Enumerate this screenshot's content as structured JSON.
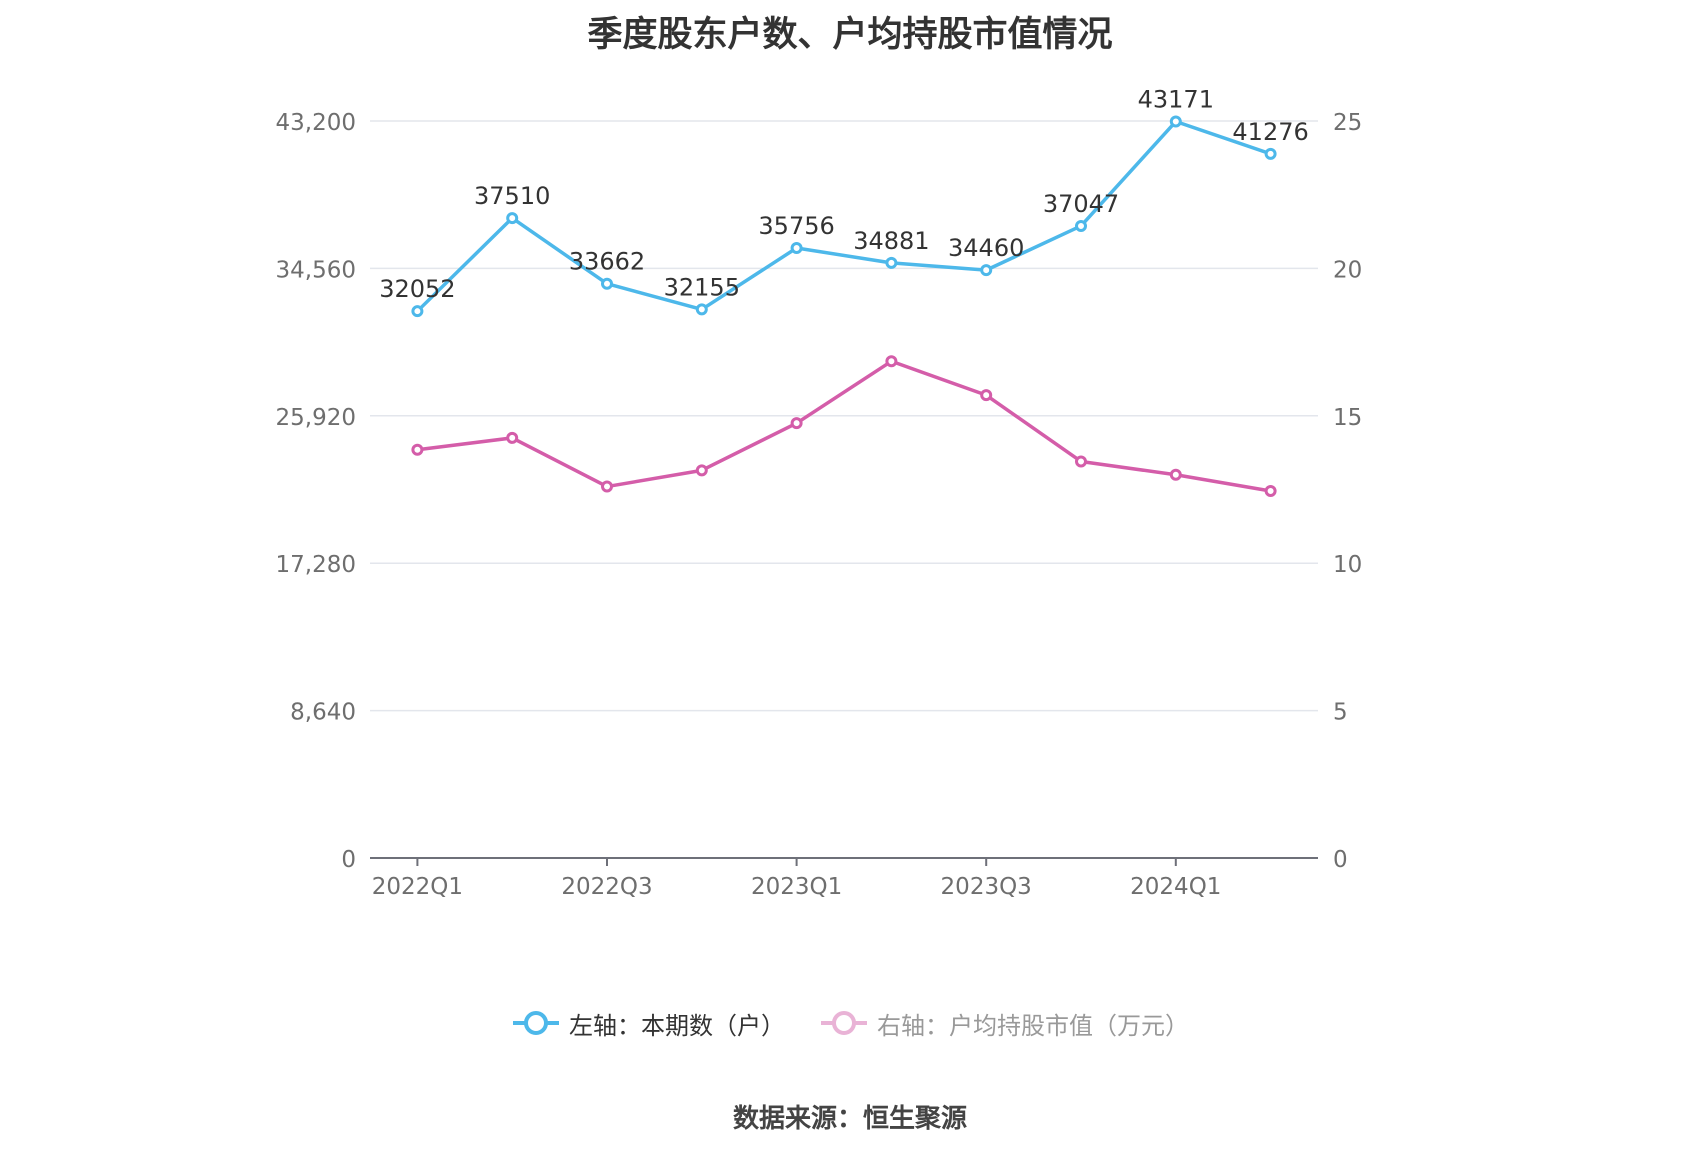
{
  "chart_data": {
    "type": "line",
    "title": "季度股东户数、户均持股市值情况",
    "categories": [
      "2022Q1",
      "2022Q2",
      "2022Q3",
      "2022Q4",
      "2023Q1",
      "2023Q2",
      "2023Q3",
      "2023Q4",
      "2024Q1",
      "2024Q2"
    ],
    "x_tick_labels": [
      "2022Q1",
      "",
      "2022Q3",
      "",
      "2023Q1",
      "",
      "2023Q3",
      "",
      "2024Q1",
      ""
    ],
    "y_left": {
      "min": 0,
      "max": 43200,
      "ticks": [
        "0",
        "8,640",
        "17,280",
        "25,920",
        "34,560",
        "43,200"
      ]
    },
    "y_right": {
      "min": 0,
      "max": 25,
      "ticks": [
        "0",
        "5",
        "10",
        "15",
        "20",
        "25"
      ]
    },
    "grid": true,
    "series": [
      {
        "name": "左轴：本期数（户）",
        "axis": "left",
        "color": "#4db8ea",
        "values": [
          32052,
          37510,
          33662,
          32155,
          35756,
          34881,
          34460,
          37047,
          43171,
          41276
        ],
        "labels": [
          "32052",
          "37510",
          "33662",
          "32155",
          "35756",
          "34881",
          "34460",
          "37047",
          "43171",
          "41276"
        ]
      },
      {
        "name": "右轴：户均持股市值（万元）",
        "axis": "right",
        "color": "#d45da9",
        "values": [
          13.85,
          14.25,
          12.6,
          13.15,
          14.75,
          16.85,
          15.7,
          13.45,
          13.0,
          12.45
        ]
      }
    ],
    "legend_position": "bottom"
  },
  "source": "数据来源：恒生聚源"
}
